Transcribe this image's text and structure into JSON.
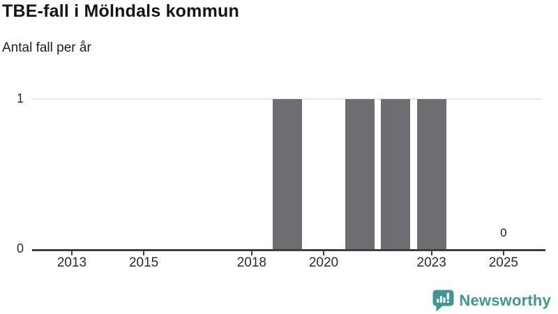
{
  "header": {
    "title": "TBE-fall i Mölndals kommun",
    "subtitle": "Antal fall per år"
  },
  "chart_data": {
    "type": "bar",
    "title": "TBE-fall i Mölndals kommun",
    "subtitle": "Antal fall per år",
    "xlabel": "",
    "ylabel": "Antal fall per år",
    "x": [
      2012,
      2013,
      2014,
      2015,
      2016,
      2017,
      2018,
      2019,
      2020,
      2021,
      2022,
      2023,
      2024,
      2025
    ],
    "values": [
      0,
      0,
      0,
      0,
      0,
      0,
      0,
      1,
      0,
      1,
      1,
      1,
      0,
      0
    ],
    "xtick_labels": [
      "2013",
      "2015",
      "2018",
      "2020",
      "2023",
      "2025"
    ],
    "xtick_years": [
      2013,
      2015,
      2018,
      2020,
      2023,
      2025
    ],
    "ytick_labels": [
      "0",
      "1"
    ],
    "yticks": [
      0,
      1
    ],
    "ylim": [
      0,
      1
    ],
    "xlim": [
      2011.9,
      2026.2
    ],
    "grid": "horizontal",
    "legend": "none",
    "annotations": [
      {
        "x": 2025,
        "value": 0,
        "label": "0"
      }
    ]
  },
  "colors": {
    "bar": "#6d6d72",
    "axis": "#3e3e42",
    "grid": "#e7e7e7",
    "brand_teal": "#3f9693",
    "text": "#1c1c1c"
  },
  "footer": {
    "brand": "Newsworthy",
    "logo_icon": "bar-chart-speech-bubble-icon"
  }
}
